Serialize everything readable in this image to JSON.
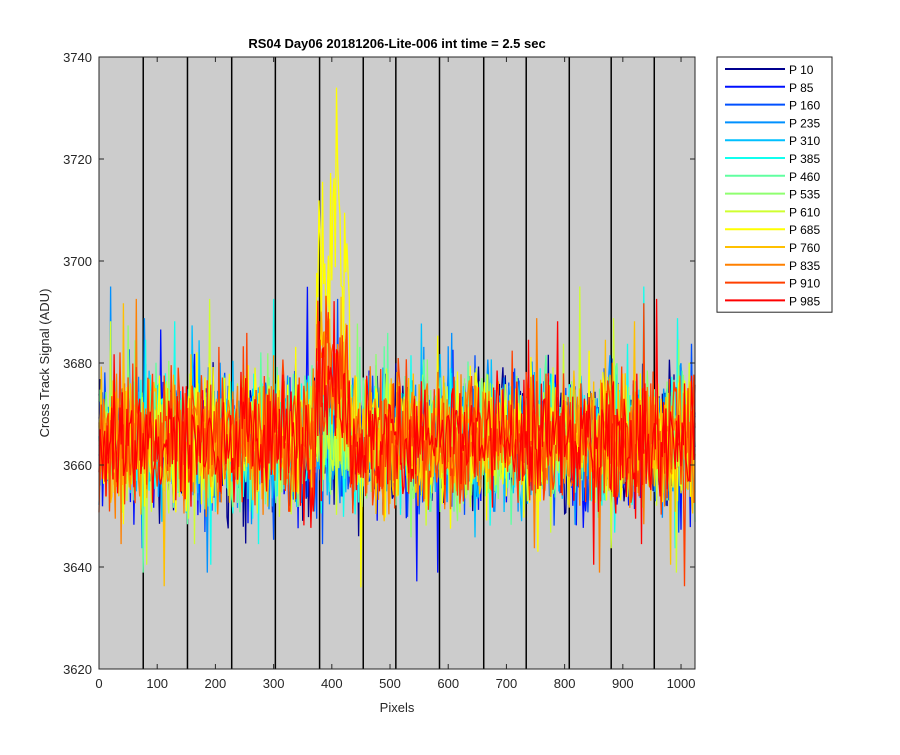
{
  "chart_data": {
    "type": "line",
    "title": "RS04 Day06 20181206-Lite-006 int time = 2.5 sec",
    "xlabel": "Pixels",
    "ylabel": "Cross Track Signal (ADU)",
    "xlim": [
      0,
      1024
    ],
    "ylim": [
      3620,
      3740
    ],
    "xticks": [
      "0",
      "100",
      "200",
      "300",
      "400",
      "500",
      "600",
      "700",
      "800",
      "900",
      "1000"
    ],
    "yticks": [
      "3620",
      "3640",
      "3660",
      "3680",
      "3700",
      "3720",
      "3740"
    ],
    "x_tick_values": [
      0,
      100,
      200,
      300,
      400,
      500,
      600,
      700,
      800,
      900,
      1000
    ],
    "y_tick_values": [
      3620,
      3640,
      3660,
      3680,
      3700,
      3720,
      3740
    ],
    "vertical_lines_x": [
      76,
      152,
      228,
      303,
      379,
      454,
      510,
      585,
      661,
      734,
      808,
      880,
      954
    ],
    "plot_background": "#cccccc",
    "legend_position": "outside-top-right",
    "noise": {
      "baseline": 3665,
      "typical_range": [
        3645,
        3685
      ],
      "extremes": [
        3632,
        3695
      ],
      "spike": {
        "x_range": [
          374,
          430
        ],
        "peak_x": 408,
        "peak_y": 3734,
        "series": "P 685"
      }
    },
    "series": [
      {
        "name": "P 10",
        "color": "#00008f"
      },
      {
        "name": "P 85",
        "color": "#0010ff"
      },
      {
        "name": "P 160",
        "color": "#0050ff"
      },
      {
        "name": "P 235",
        "color": "#0090ff"
      },
      {
        "name": "P 310",
        "color": "#00c0ff"
      },
      {
        "name": "P 385",
        "color": "#10ffef"
      },
      {
        "name": "P 460",
        "color": "#60ffa0"
      },
      {
        "name": "P 535",
        "color": "#8fff70"
      },
      {
        "name": "P 610",
        "color": "#cfff30"
      },
      {
        "name": "P 685",
        "color": "#ffff00"
      },
      {
        "name": "P 760",
        "color": "#ffc000"
      },
      {
        "name": "P 835",
        "color": "#ff8000"
      },
      {
        "name": "P 910",
        "color": "#ff4000"
      },
      {
        "name": "P 985",
        "color": "#ff0000"
      }
    ]
  }
}
